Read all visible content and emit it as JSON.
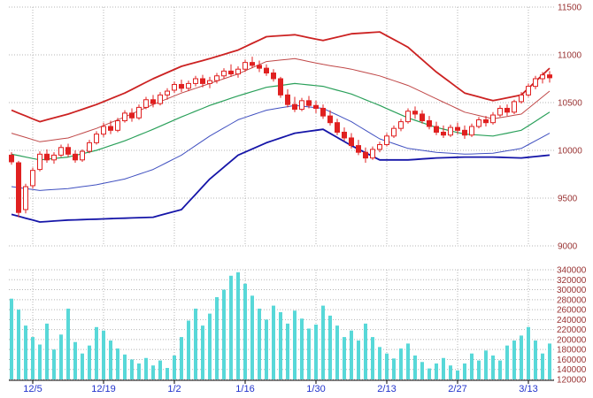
{
  "chart_data": {
    "type": "candlestick",
    "title": "",
    "description": "Daily candlestick chart with Bollinger bands (upper/lower 1 and 2 sigma plus middle moving average) and volume bars below",
    "panels": {
      "price": {
        "ylim": [
          9000,
          11500
        ],
        "yticks": [
          11500,
          11000,
          10500,
          10000,
          9500,
          9000
        ]
      },
      "volume": {
        "ylim": [
          120000,
          340000
        ],
        "yticks": [
          340000,
          320000,
          300000,
          280000,
          260000,
          240000,
          220000,
          200000,
          180000,
          160000,
          140000,
          120000
        ]
      }
    },
    "x_ticks": [
      {
        "index": 3,
        "label": "12/5"
      },
      {
        "index": 13,
        "label": "12/19"
      },
      {
        "index": 23,
        "label": "1/2"
      },
      {
        "index": 33,
        "label": "1/16"
      },
      {
        "index": 43,
        "label": "1/30"
      },
      {
        "index": 53,
        "label": "2/13"
      },
      {
        "index": 63,
        "label": "2/27"
      },
      {
        "index": 73,
        "label": "3/13"
      }
    ],
    "candles_ohlc": [
      [
        9950,
        9980,
        9850,
        9880
      ],
      [
        9870,
        9890,
        9300,
        9350
      ],
      [
        9380,
        9650,
        9340,
        9620
      ],
      [
        9630,
        9820,
        9600,
        9790
      ],
      [
        9800,
        9990,
        9780,
        9960
      ],
      [
        9960,
        10010,
        9870,
        9900
      ],
      [
        9900,
        9980,
        9860,
        9950
      ],
      [
        9950,
        10060,
        9930,
        10030
      ],
      [
        10030,
        10070,
        9930,
        9960
      ],
      [
        9960,
        10000,
        9870,
        9900
      ],
      [
        9900,
        10010,
        9880,
        9990
      ],
      [
        9990,
        10110,
        9970,
        10080
      ],
      [
        10080,
        10200,
        10060,
        10170
      ],
      [
        10170,
        10290,
        10140,
        10250
      ],
      [
        10250,
        10310,
        10170,
        10210
      ],
      [
        10210,
        10340,
        10190,
        10310
      ],
      [
        10310,
        10420,
        10290,
        10390
      ],
      [
        10390,
        10440,
        10300,
        10340
      ],
      [
        10340,
        10480,
        10320,
        10450
      ],
      [
        10450,
        10560,
        10430,
        10530
      ],
      [
        10530,
        10580,
        10450,
        10490
      ],
      [
        10490,
        10610,
        10470,
        10580
      ],
      [
        10580,
        10650,
        10530,
        10620
      ],
      [
        10630,
        10720,
        10600,
        10690
      ],
      [
        10690,
        10740,
        10610,
        10650
      ],
      [
        10650,
        10730,
        10620,
        10700
      ],
      [
        10700,
        10780,
        10670,
        10750
      ],
      [
        10750,
        10790,
        10660,
        10700
      ],
      [
        10700,
        10770,
        10650,
        10730
      ],
      [
        10730,
        10810,
        10700,
        10780
      ],
      [
        10780,
        10860,
        10750,
        10830
      ],
      [
        10830,
        10900,
        10770,
        10800
      ],
      [
        10800,
        10880,
        10760,
        10850
      ],
      [
        10850,
        10950,
        10820,
        10920
      ],
      [
        10920,
        10980,
        10860,
        10890
      ],
      [
        10890,
        10940,
        10820,
        10860
      ],
      [
        10860,
        10900,
        10780,
        10810
      ],
      [
        10810,
        10850,
        10720,
        10750
      ],
      [
        10750,
        10770,
        10550,
        10580
      ],
      [
        10580,
        10640,
        10450,
        10480
      ],
      [
        10480,
        10560,
        10400,
        10430
      ],
      [
        10430,
        10550,
        10410,
        10520
      ],
      [
        10520,
        10570,
        10440,
        10470
      ],
      [
        10470,
        10520,
        10390,
        10440
      ],
      [
        10440,
        10480,
        10330,
        10360
      ],
      [
        10360,
        10420,
        10260,
        10290
      ],
      [
        10290,
        10330,
        10160,
        10190
      ],
      [
        10190,
        10240,
        10100,
        10130
      ],
      [
        10130,
        10180,
        10020,
        10050
      ],
      [
        10050,
        10110,
        9950,
        9980
      ],
      [
        9980,
        10030,
        9870,
        9920
      ],
      [
        9920,
        10040,
        9900,
        10010
      ],
      [
        10010,
        10090,
        9980,
        10060
      ],
      [
        10060,
        10180,
        10040,
        10150
      ],
      [
        10150,
        10260,
        10130,
        10230
      ],
      [
        10230,
        10330,
        10200,
        10300
      ],
      [
        10300,
        10440,
        10280,
        10410
      ],
      [
        10410,
        10460,
        10330,
        10380
      ],
      [
        10380,
        10420,
        10280,
        10310
      ],
      [
        10310,
        10360,
        10220,
        10250
      ],
      [
        10250,
        10300,
        10160,
        10190
      ],
      [
        10190,
        10260,
        10130,
        10160
      ],
      [
        10160,
        10270,
        10140,
        10240
      ],
      [
        10240,
        10290,
        10170,
        10210
      ],
      [
        10210,
        10260,
        10120,
        10160
      ],
      [
        10160,
        10280,
        10140,
        10250
      ],
      [
        10250,
        10350,
        10230,
        10320
      ],
      [
        10320,
        10360,
        10250,
        10290
      ],
      [
        10290,
        10400,
        10270,
        10370
      ],
      [
        10370,
        10470,
        10350,
        10440
      ],
      [
        10440,
        10480,
        10360,
        10400
      ],
      [
        10400,
        10530,
        10380,
        10510
      ],
      [
        10510,
        10610,
        10490,
        10580
      ],
      [
        10580,
        10700,
        10560,
        10670
      ],
      [
        10670,
        10780,
        10640,
        10750
      ],
      [
        10750,
        10820,
        10700,
        10790
      ],
      [
        10790,
        10830,
        10710,
        10760
      ]
    ],
    "volumes": [
      282000,
      260000,
      228000,
      205000,
      190000,
      232000,
      180000,
      210000,
      262000,
      195000,
      172000,
      188000,
      225000,
      218000,
      198000,
      182000,
      170000,
      160000,
      152000,
      163000,
      148000,
      158000,
      143000,
      168000,
      205000,
      238000,
      262000,
      228000,
      252000,
      285000,
      300000,
      328000,
      335000,
      312000,
      288000,
      262000,
      240000,
      268000,
      255000,
      232000,
      258000,
      242000,
      222000,
      230000,
      268000,
      248000,
      228000,
      205000,
      218000,
      198000,
      232000,
      205000,
      185000,
      172000,
      162000,
      182000,
      192000,
      168000,
      155000,
      142000,
      152000,
      163000,
      148000,
      138000,
      152000,
      172000,
      158000,
      178000,
      168000,
      158000,
      188000,
      198000,
      208000,
      225000,
      198000,
      172000,
      192000
    ],
    "overlays": {
      "keypoint_indices": [
        0,
        4,
        8,
        12,
        16,
        20,
        24,
        28,
        32,
        36,
        40,
        44,
        48,
        52,
        56,
        60,
        64,
        68,
        72,
        76
      ],
      "upper2": [
        10420,
        10300,
        10380,
        10480,
        10600,
        10750,
        10880,
        10960,
        11050,
        11190,
        11210,
        11150,
        11220,
        11240,
        11080,
        10820,
        10600,
        10520,
        10580,
        10860
      ],
      "upper1": [
        10180,
        10090,
        10130,
        10230,
        10350,
        10480,
        10600,
        10700,
        10800,
        10930,
        10960,
        10900,
        10850,
        10780,
        10680,
        10540,
        10400,
        10330,
        10380,
        10620
      ],
      "middle": [
        9960,
        9900,
        9930,
        10000,
        10100,
        10220,
        10350,
        10470,
        10570,
        10660,
        10700,
        10670,
        10590,
        10470,
        10340,
        10240,
        10170,
        10150,
        10210,
        10400
      ],
      "lower1": [
        9620,
        9580,
        9600,
        9640,
        9700,
        9800,
        9950,
        10150,
        10320,
        10420,
        10470,
        10440,
        10300,
        10120,
        10020,
        9980,
        9960,
        9970,
        10020,
        10180
      ],
      "lower2": [
        9330,
        9250,
        9270,
        9280,
        9290,
        9300,
        9380,
        9700,
        9950,
        10080,
        10180,
        10220,
        10050,
        9900,
        9900,
        9920,
        9930,
        9930,
        9920,
        9950
      ]
    },
    "colors": {
      "candle_up_fill": "#ffffff",
      "candle_outline": "#e02020",
      "candle_down_fill": "#e02020",
      "band_upper2": "#cc2222",
      "band_upper1": "#c04848",
      "band_middle": "#2aa05a",
      "band_lower1": "#4050c0",
      "band_lower2": "#1515a8",
      "volume_bar": "#58d8d8",
      "grid": "#b4b4b4",
      "value_label": "#993333",
      "date_label": "#2233cc",
      "axis": "#000000"
    }
  }
}
